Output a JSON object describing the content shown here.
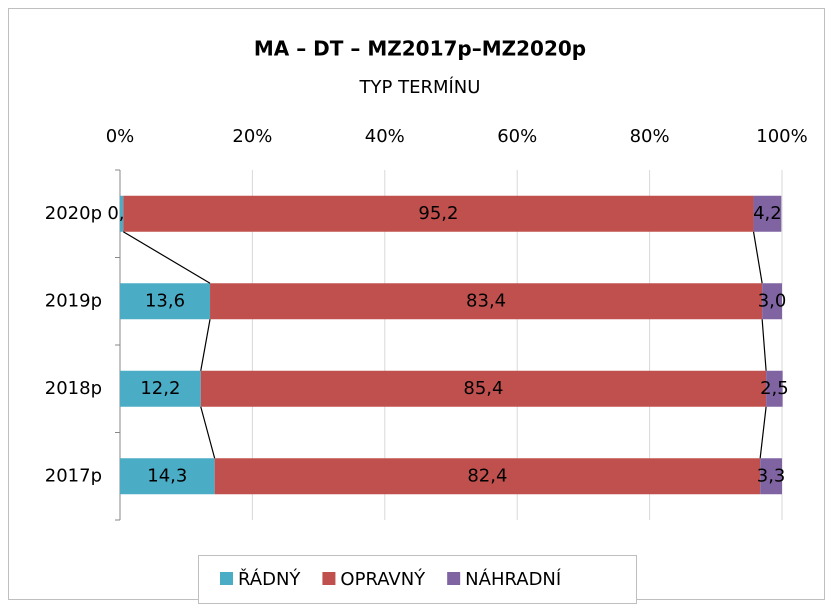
{
  "chart_data": {
    "type": "stacked-bar-horizontal",
    "title": "MA – DT – MZ2017p–MZ2020p",
    "subtitle": "TYP TERMÍNU",
    "categories": [
      "2020p",
      "2019p",
      "2018p",
      "2017p"
    ],
    "series": [
      {
        "name": "ŘÁDNÝ",
        "color": "#4bacc6",
        "values": [
          0.5,
          13.6,
          12.2,
          14.3
        ],
        "value_labels": [
          "0,5",
          "13,6",
          "12,2",
          "14,3"
        ]
      },
      {
        "name": "OPRAVNÝ",
        "color": "#c0504d",
        "values": [
          95.2,
          83.4,
          85.4,
          82.4
        ],
        "value_labels": [
          "95,2",
          "83,4",
          "85,4",
          "82,4"
        ]
      },
      {
        "name": "NÁHRADNÍ",
        "color": "#8064a2",
        "values": [
          4.2,
          3.0,
          2.5,
          3.3
        ],
        "value_labels": [
          "4,2",
          "3,0",
          "2,5",
          "3,3"
        ]
      }
    ],
    "xlim": [
      0,
      100
    ],
    "xticks": [
      {
        "value": 0,
        "label": "0%"
      },
      {
        "value": 20,
        "label": "20%"
      },
      {
        "value": 40,
        "label": "40%"
      },
      {
        "value": 60,
        "label": "60%"
      },
      {
        "value": 80,
        "label": "80%"
      },
      {
        "value": 100,
        "label": "100%"
      }
    ],
    "grid": true,
    "legend": "bottom"
  }
}
